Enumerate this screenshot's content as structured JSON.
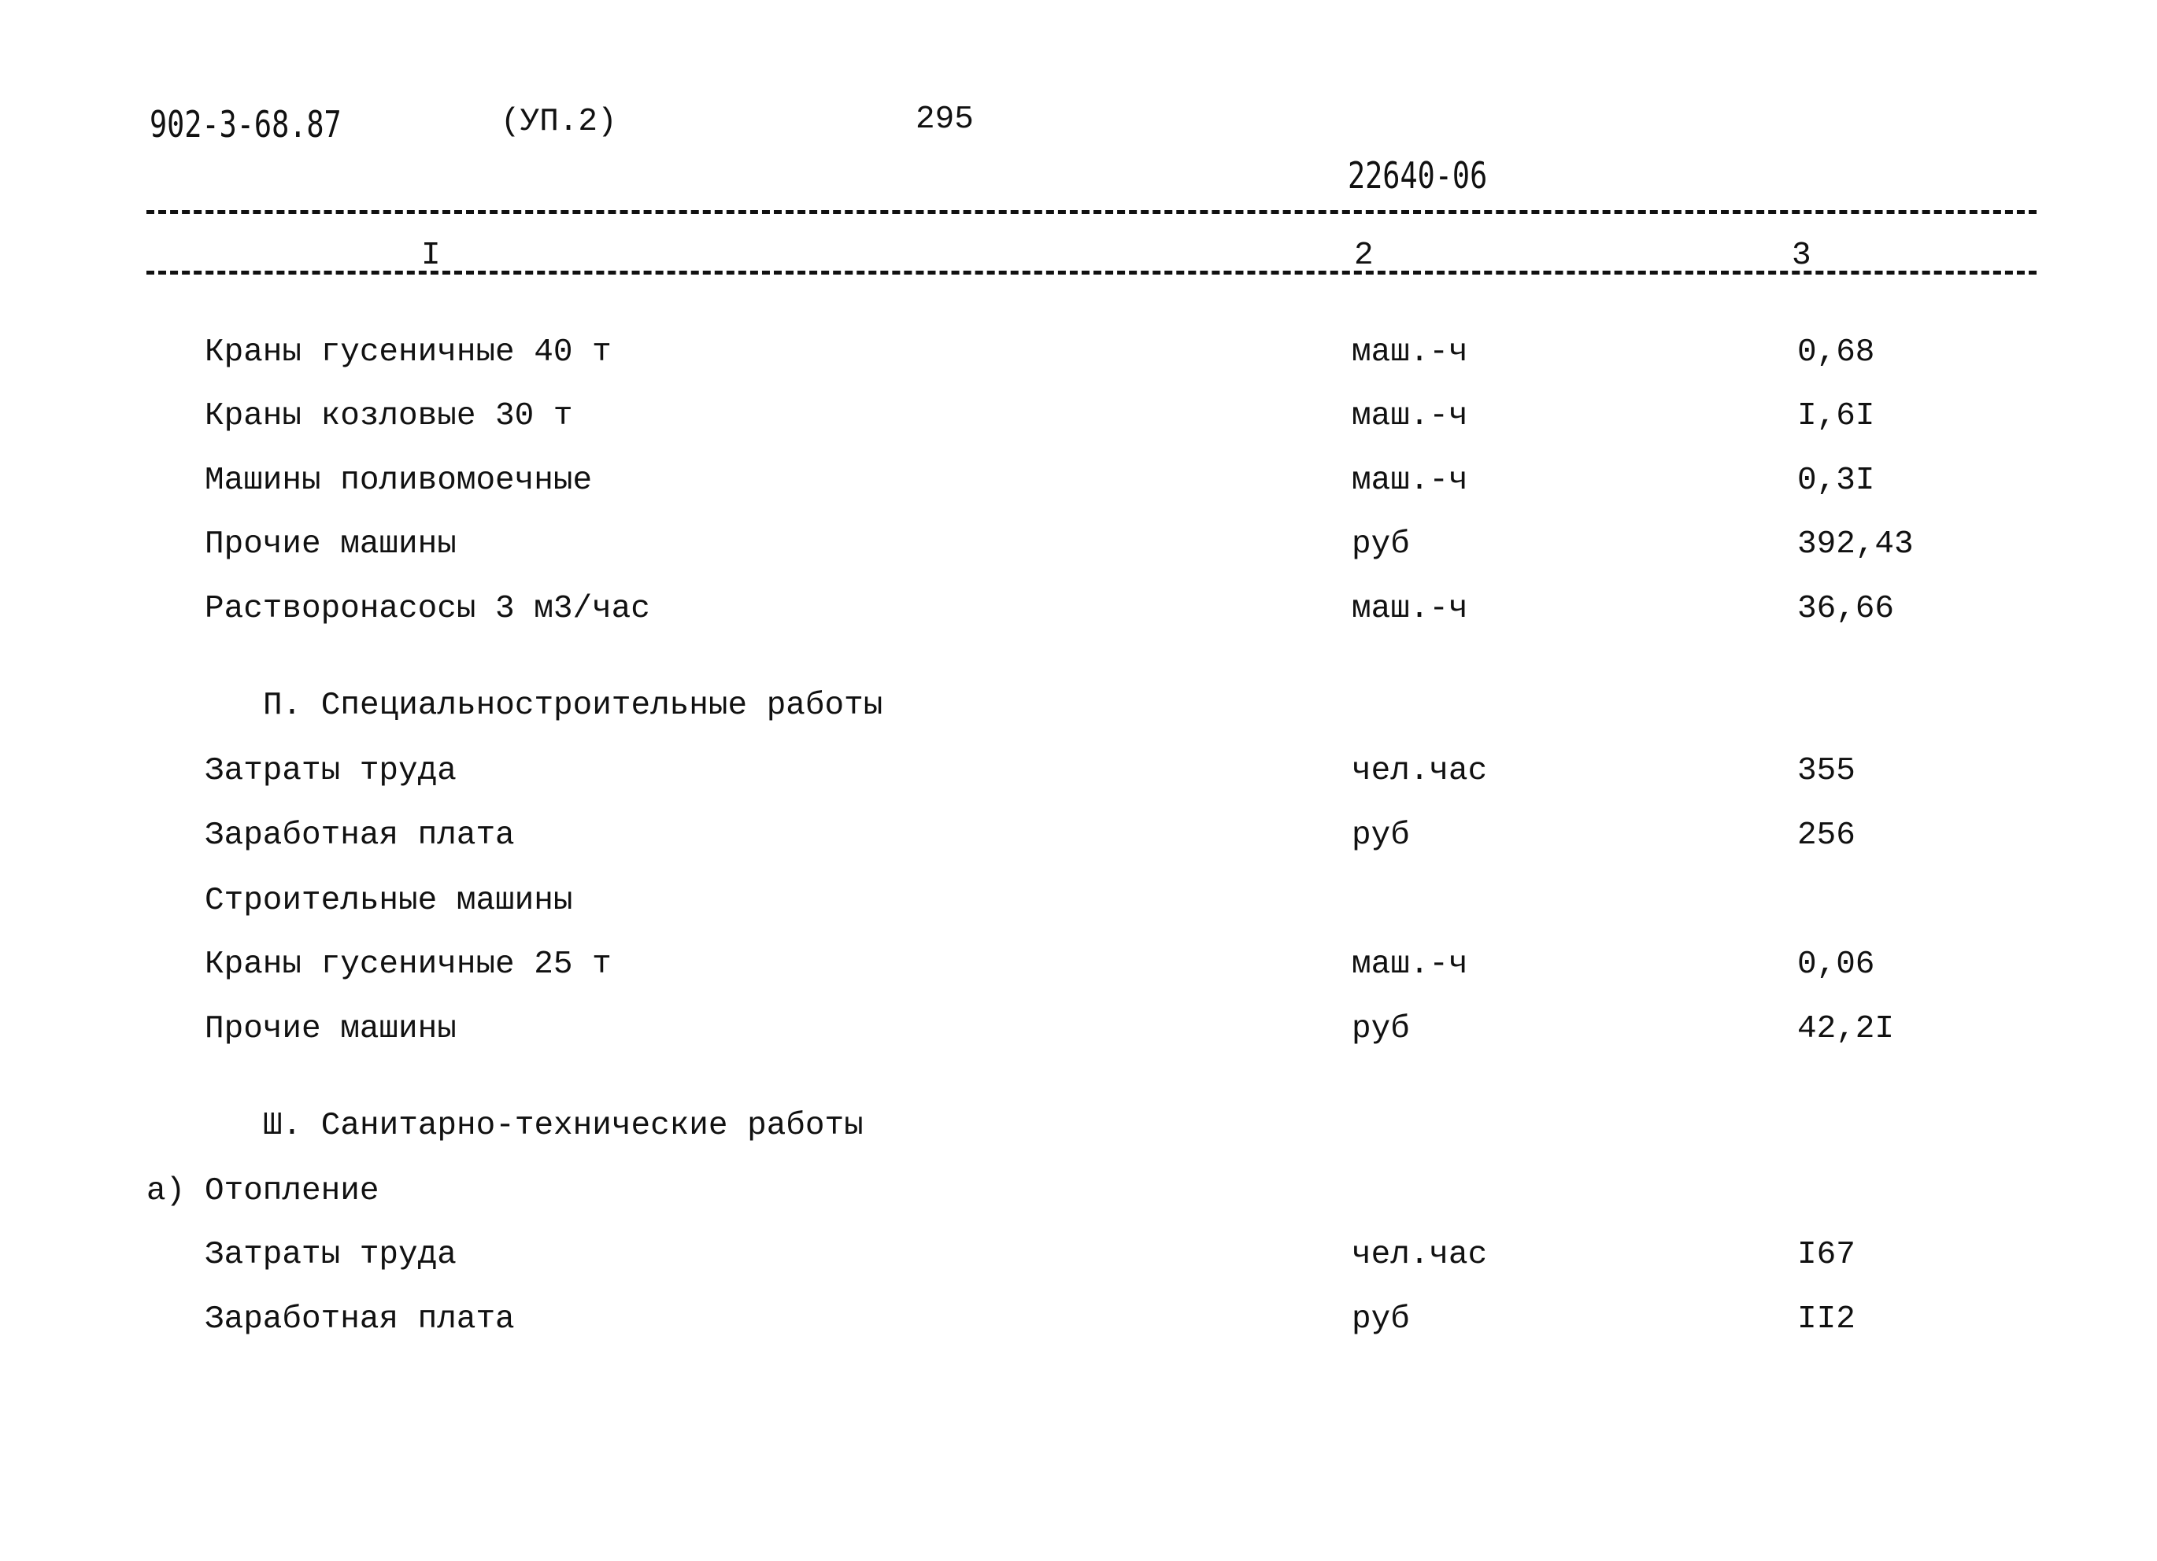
{
  "header": {
    "doc_code": "902-3-68.87",
    "album": "(УП.2)",
    "page_number": "295",
    "handwritten_code": "22640-06"
  },
  "columns": [
    "I",
    "2",
    "3"
  ],
  "rows": [
    {
      "name": "Краны гусеничные 40 т",
      "unit": "маш.-ч",
      "value": "0,68"
    },
    {
      "name": "Краны козловые 30 т",
      "unit": "маш.-ч",
      "value": "I,6I"
    },
    {
      "name": "Машины поливомоечные",
      "unit": "маш.-ч",
      "value": "0,3I"
    },
    {
      "name": "Прочие машины",
      "unit": "руб",
      "value": "392,43"
    },
    {
      "name": "Растворонасосы 3 м3/час",
      "unit": "маш.-ч",
      "value": "36,66"
    },
    {
      "section": "П. Специальностроительные работы"
    },
    {
      "name": "Затраты труда",
      "unit": "чел.час",
      "value": "355"
    },
    {
      "name": "Заработная плата",
      "unit": "руб",
      "value": "256"
    },
    {
      "name": "Строительные машины"
    },
    {
      "name": "Краны гусеничные 25 т",
      "unit": "маш.-ч",
      "value": "0,06"
    },
    {
      "name": "Прочие машины",
      "unit": "руб",
      "value": "42,2I"
    },
    {
      "section": "Ш. Санитарно-технические работы"
    },
    {
      "prefix": "а)",
      "name": "Отопление"
    },
    {
      "name": "Затраты труда",
      "unit": "чел.час",
      "value": "I67"
    },
    {
      "name": "Заработная плата",
      "unit": "руб",
      "value": "II2"
    }
  ]
}
